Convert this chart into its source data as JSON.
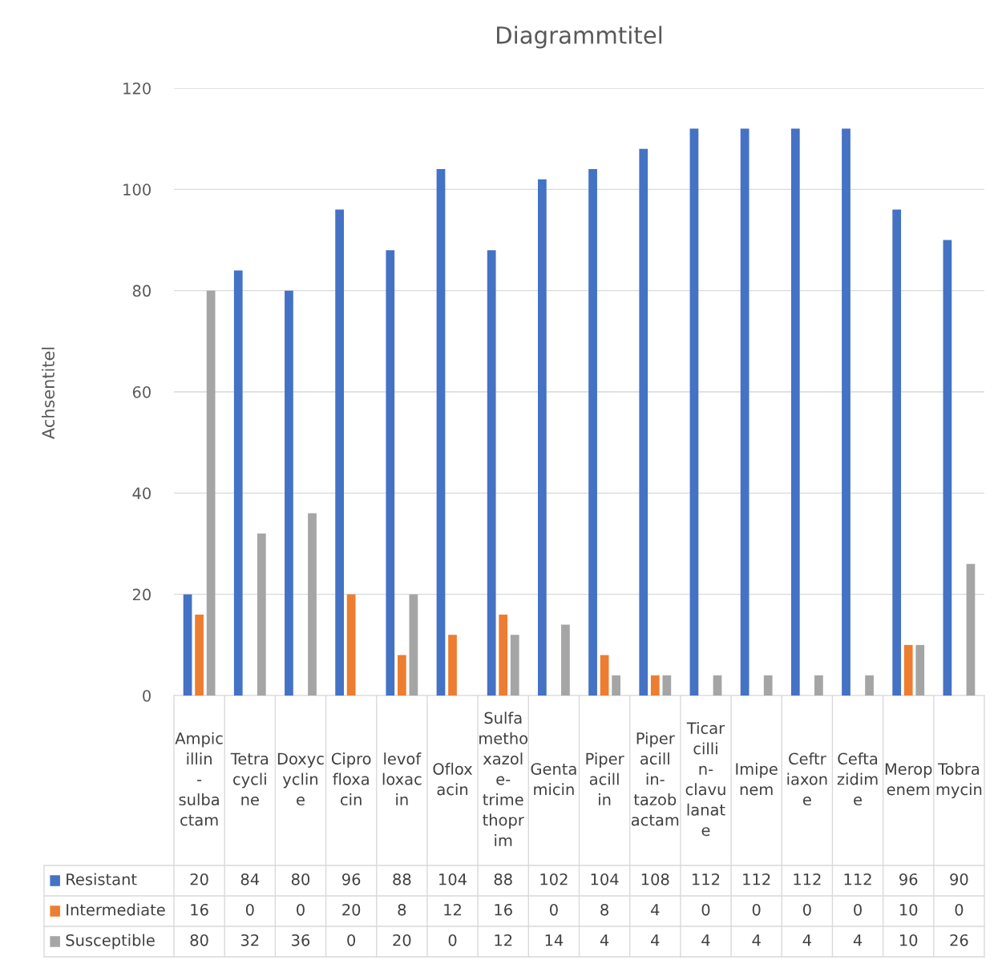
{
  "chart_data": {
    "type": "bar",
    "title": "Diagrammtitel",
    "ylabel": "Achsentitel",
    "categories": [
      "Ampicillin-sulbactam",
      "Tetracycline",
      "Doxycycline",
      "Ciprofloxacin",
      "levofloxacin",
      "Ofloxacin",
      "Sulfamethoxazole-trimethoprim",
      "Gentamicin",
      "Piperacillin",
      "Piperacillin-tazobactam",
      "Ticarcillin-clavulanate",
      "Imipenem",
      "Ceftriaxone",
      "Ceftazidime",
      "Meropenem",
      "Tobramycin"
    ],
    "series": [
      {
        "name": "Resistant",
        "color": "#4472c4",
        "values": [
          20,
          84,
          80,
          96,
          88,
          104,
          88,
          102,
          104,
          108,
          112,
          112,
          112,
          112,
          96,
          90
        ]
      },
      {
        "name": "Intermediate",
        "color": "#ed7d31",
        "values": [
          16,
          0,
          0,
          20,
          8,
          12,
          16,
          0,
          8,
          4,
          0,
          0,
          0,
          0,
          10,
          0
        ]
      },
      {
        "name": "Susceptible",
        "color": "#a5a5a5",
        "values": [
          80,
          32,
          36,
          0,
          20,
          0,
          12,
          14,
          4,
          4,
          4,
          4,
          4,
          4,
          10,
          26
        ]
      }
    ],
    "ylim": [
      0,
      120
    ],
    "yticks": [
      0,
      20,
      40,
      60,
      80,
      100,
      120
    ],
    "grid": "y",
    "legend": "bottom",
    "data_labels": true
  }
}
